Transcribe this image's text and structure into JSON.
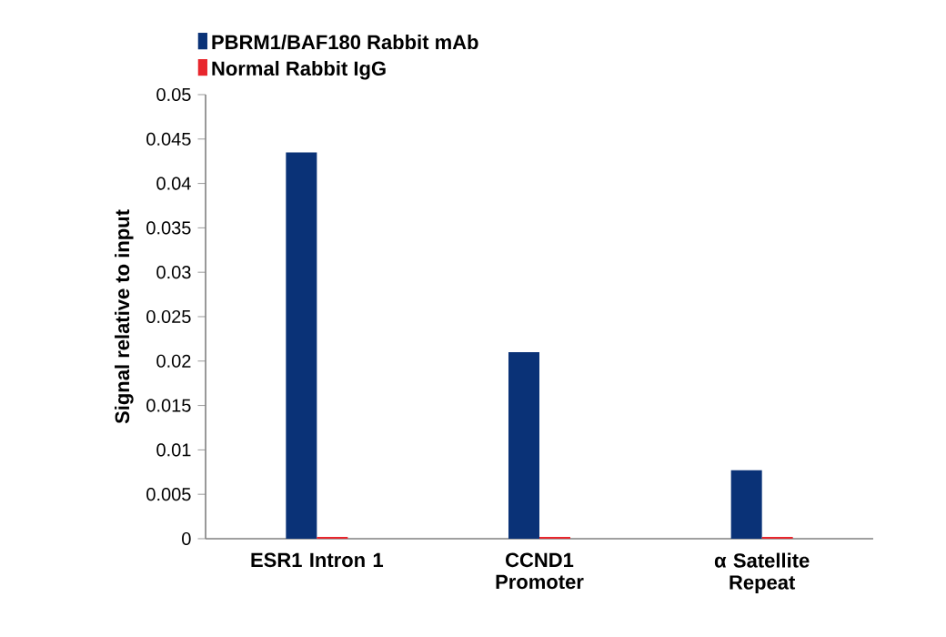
{
  "chart_data": {
    "type": "bar",
    "ylabel": "Signal relative to input",
    "categories": [
      "ESR1 Intron 1",
      "CCND1 Promoter",
      "α Satellite Repeat"
    ],
    "series": [
      {
        "name": "PBRM1/BAF180 Rabbit mAb",
        "color": "#0a3277",
        "values": [
          0.0435,
          0.021,
          0.0077
        ]
      },
      {
        "name": "Normal Rabbit IgG",
        "color": "#e8262d",
        "values": [
          0.0002,
          0.0002,
          0.0002
        ]
      }
    ],
    "ylim": [
      0,
      0.05
    ],
    "yticks": [
      0,
      0.005,
      0.01,
      0.015,
      0.02,
      0.025,
      0.03,
      0.035,
      0.04,
      0.045,
      0.05
    ],
    "legend": "top left",
    "grid": false
  }
}
